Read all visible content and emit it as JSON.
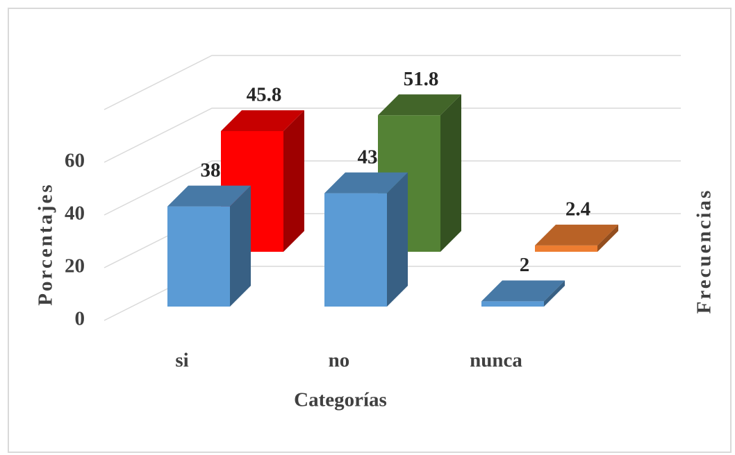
{
  "chart_data": {
    "type": "bar3d",
    "x_label": "Categorías",
    "y_label": "Porcentajes",
    "y2_label": "Frecuencias",
    "categories": [
      "si",
      "no",
      "nunca"
    ],
    "series": [
      {
        "color": "#5b9bd5",
        "values": [
          38,
          43,
          2
        ]
      },
      {
        "colors": [
          "#ff0000",
          "#548235",
          "#ed7d31"
        ],
        "values": [
          45.8,
          51.8,
          2.4
        ]
      }
    ],
    "ylim": [
      0,
      80
    ],
    "yticks": [
      0,
      20,
      40,
      60
    ],
    "grid": true
  }
}
